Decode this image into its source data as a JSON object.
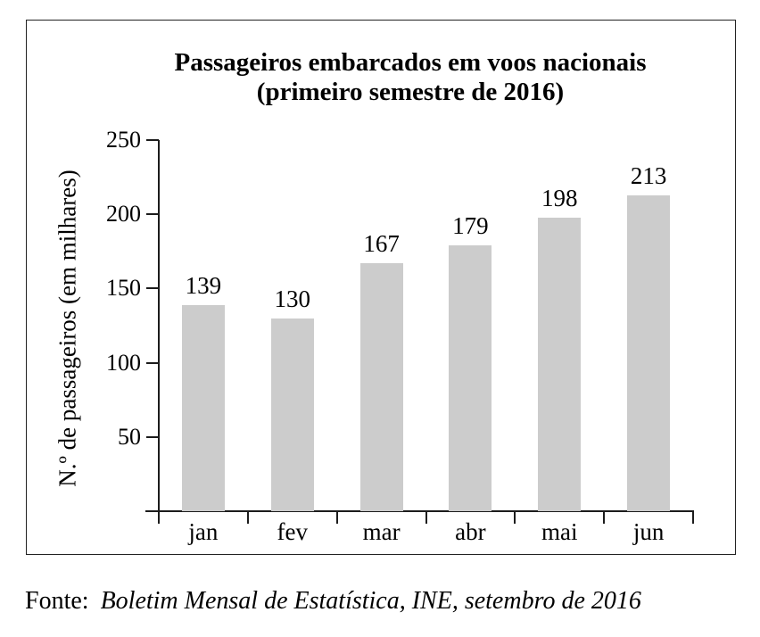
{
  "figure": {
    "title_line1": "Passageiros embarcados em voos nacionais",
    "title_line2": "(primeiro semestre de 2016)",
    "source_prefix": "Fonte:",
    "source_text": "Boletim Mensal de Estatística, INE, setembro de 2016"
  },
  "chart_data": {
    "type": "bar",
    "title": "Passageiros embarcados em voos nacionais (primeiro semestre de 2016)",
    "categories": [
      "jan",
      "fev",
      "mar",
      "abr",
      "mai",
      "jun"
    ],
    "values": [
      139,
      130,
      167,
      179,
      198,
      213
    ],
    "data_labels": [
      139,
      130,
      167,
      179,
      198,
      213
    ],
    "xlabel": "",
    "ylabel": "N.º de passageiros (em milhares)",
    "ylim": [
      0,
      250
    ],
    "y_ticks": [
      50,
      100,
      150,
      200,
      250
    ],
    "grid": false,
    "legend_position": "none",
    "colors": {
      "bar_fill": "#cccccc",
      "axis": "#1c1c1c",
      "text": "#000000",
      "frame_border": "#222222",
      "background": "#ffffff"
    }
  }
}
